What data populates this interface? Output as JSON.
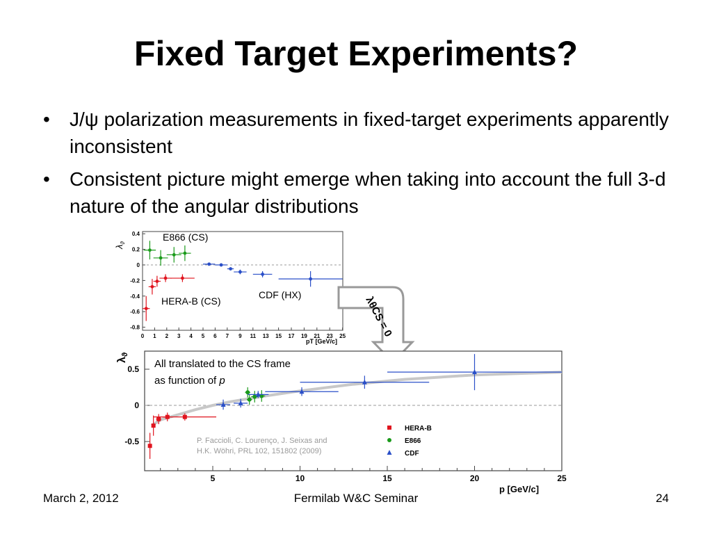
{
  "slide": {
    "title": "Fixed Target Experiments?",
    "bullets": [
      "J/ψ polarization measurements in fixed-target experiments apparently inconsistent",
      "Consistent picture might emerge when taking into account the full 3-d nature of the angular distributions"
    ],
    "footer": {
      "date": "March 2, 2012",
      "event": "Fermilab W&C Seminar",
      "page": "24"
    }
  },
  "arrow_label": "λθCS = 0",
  "chart_data": [
    {
      "type": "scatter",
      "ylabel": "λθ",
      "xlabel": "pT [GeV/c]",
      "xticks": [
        0,
        1,
        2,
        3,
        4,
        5,
        6,
        7,
        9,
        11,
        13,
        15,
        17,
        19,
        21,
        23,
        25
      ],
      "yticks": [
        -0.8,
        -0.6,
        -0.4,
        -0.2,
        0,
        0.2,
        0.4
      ],
      "ylim": [
        -0.8,
        0.4
      ],
      "annotations": [
        "E866 (CS)",
        "HERA-B (CS)",
        "CDF (HX)"
      ],
      "colors": {
        "E866": "#1a9a1a",
        "HERA-B": "#e0141e",
        "CDF": "#2a4fc8"
      },
      "series": [
        {
          "name": "E866 (CS)",
          "points": [
            {
              "x": 0.6,
              "y": 0.19,
              "xerr": 0.5,
              "yerr": 0.12
            },
            {
              "x": 1.5,
              "y": 0.09,
              "xerr": 0.6,
              "yerr": 0.1
            },
            {
              "x": 2.6,
              "y": 0.13,
              "xerr": 0.6,
              "yerr": 0.1
            },
            {
              "x": 3.5,
              "y": 0.15,
              "xerr": 0.5,
              "yerr": 0.1
            }
          ]
        },
        {
          "name": "HERA-B (CS)",
          "points": [
            {
              "x": 0.3,
              "y": -0.56,
              "xerr": 0.3,
              "yerr": 0.16
            },
            {
              "x": 0.8,
              "y": -0.28,
              "xerr": 0.3,
              "yerr": 0.1
            },
            {
              "x": 1.2,
              "y": -0.21,
              "xerr": 0.3,
              "yerr": 0.07
            },
            {
              "x": 1.9,
              "y": -0.17,
              "xerr": 0.5,
              "yerr": 0.05
            },
            {
              "x": 3.3,
              "y": -0.17,
              "xerr": 1.0,
              "yerr": 0.05
            }
          ]
        },
        {
          "name": "CDF (HX)",
          "points": [
            {
              "x": 5.5,
              "y": 0.01,
              "xerr": 0.5,
              "yerr": 0.02
            },
            {
              "x": 6.5,
              "y": 0.0,
              "xerr": 0.5,
              "yerr": 0.02
            },
            {
              "x": 7.5,
              "y": -0.05,
              "xerr": 0.5,
              "yerr": 0.02
            },
            {
              "x": 9.0,
              "y": -0.09,
              "xerr": 1.0,
              "yerr": 0.03
            },
            {
              "x": 12.5,
              "y": -0.12,
              "xerr": 1.5,
              "yerr": 0.04
            },
            {
              "x": 20.0,
              "y": -0.18,
              "xerr": 5.0,
              "yerr": 0.1
            }
          ]
        }
      ]
    },
    {
      "type": "scatter",
      "ylabel": "λϑ",
      "xlabel": "p [GeV/c]",
      "xlim": [
        1,
        25
      ],
      "ylim": [
        -0.8,
        0.65
      ],
      "xticks": [
        5,
        10,
        15,
        20,
        25
      ],
      "yticks": [
        -0.5,
        0,
        0.5
      ],
      "annotation": "All translated to the CS frame as function of p",
      "reference": "P. Faccioli, C. Lourenço, J. Seixas and H.K. Wöhri, PRL 102, 151802 (2009)",
      "legend": [
        "HERA-B",
        "E866",
        "CDF"
      ],
      "legend_position": "bottom-right",
      "colors": {
        "HERA-B": "#e0141e",
        "E866": "#1a9a1a",
        "CDF": "#2a4fc8",
        "curve": "#c8c8c8"
      },
      "dashed_line_y": 0,
      "series": [
        {
          "name": "HERA-B",
          "marker": "square",
          "points": [
            {
              "x": 1.4,
              "y": -0.56,
              "xerr": 0.1,
              "yerr": 0.18
            },
            {
              "x": 1.6,
              "y": -0.28,
              "xerr": 0.1,
              "yerr": 0.14
            },
            {
              "x": 1.9,
              "y": -0.19,
              "xerr": 0.15,
              "yerr": 0.07
            },
            {
              "x": 2.4,
              "y": -0.16,
              "xerr": 0.3,
              "yerr": 0.06
            },
            {
              "x": 3.4,
              "y": -0.16,
              "xerr": 1.8,
              "yerr": 0.05
            }
          ]
        },
        {
          "name": "E866",
          "marker": "circle",
          "points": [
            {
              "x": 7.0,
              "y": 0.18,
              "xerr": 0.15,
              "yerr": 0.07
            },
            {
              "x": 7.1,
              "y": 0.08,
              "xerr": 0.15,
              "yerr": 0.07
            },
            {
              "x": 7.4,
              "y": 0.12,
              "xerr": 0.2,
              "yerr": 0.08
            },
            {
              "x": 7.8,
              "y": 0.13,
              "xerr": 0.2,
              "yerr": 0.08
            }
          ]
        },
        {
          "name": "CDF",
          "marker": "triangle",
          "points": [
            {
              "x": 5.6,
              "y": 0.01,
              "xerr": 0.4,
              "yerr": 0.07
            },
            {
              "x": 6.6,
              "y": 0.03,
              "xerr": 0.4,
              "yerr": 0.06
            },
            {
              "x": 7.6,
              "y": 0.15,
              "xerr": 0.6,
              "yerr": 0.05
            },
            {
              "x": 10.1,
              "y": 0.19,
              "xerr": 2.1,
              "yerr": 0.06
            },
            {
              "x": 13.7,
              "y": 0.32,
              "xerr": 3.7,
              "yerr": 0.09
            },
            {
              "x": 20.0,
              "y": 0.46,
              "xerr": 5.0,
              "yerr": 0.25
            }
          ]
        }
      ],
      "curve": [
        [
          1.5,
          -0.28
        ],
        [
          2,
          -0.2
        ],
        [
          3,
          -0.13
        ],
        [
          4,
          -0.06
        ],
        [
          5,
          0.0
        ],
        [
          6,
          0.05
        ],
        [
          8,
          0.13
        ],
        [
          10,
          0.2
        ],
        [
          13,
          0.29
        ],
        [
          16,
          0.36
        ],
        [
          20,
          0.42
        ],
        [
          25,
          0.46
        ]
      ]
    }
  ]
}
